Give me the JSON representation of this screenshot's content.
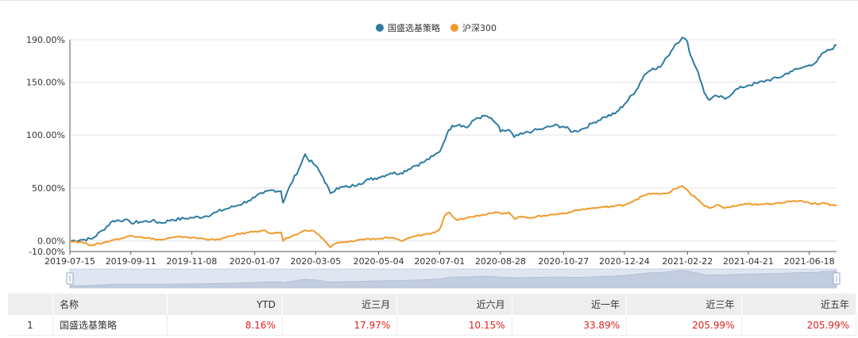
{
  "chart_data": {
    "type": "line",
    "title": "",
    "legend_position": "top-center",
    "grid": true,
    "ylim": [
      -10,
      190
    ],
    "y_ticks": [
      "190.00%",
      "150.00%",
      "100.00%",
      "50.00%",
      "0.00%",
      "-10.00%"
    ],
    "y_tick_values": [
      190,
      150,
      100,
      50,
      0,
      -10
    ],
    "x_ticks": [
      "2019-07-15",
      "2019-09-11",
      "2019-11-08",
      "2020-01-07",
      "2020-03-05",
      "2020-05-04",
      "2020-07-01",
      "2020-08-28",
      "2020-10-27",
      "2020-12-24",
      "2021-02-22",
      "2021-04-21",
      "2021-06-18"
    ],
    "x_start": "2019-07-15",
    "x_end": "2021-07-14",
    "series": [
      {
        "name": "国盛选基策略",
        "color": "#2e7ba1",
        "points": [
          [
            "2019-07-15",
            0
          ],
          [
            "2019-07-25",
            1
          ],
          [
            "2019-08-05",
            2
          ],
          [
            "2019-08-15",
            10
          ],
          [
            "2019-08-25",
            19
          ],
          [
            "2019-09-05",
            20
          ],
          [
            "2019-09-11",
            17
          ],
          [
            "2019-09-20",
            18
          ],
          [
            "2019-10-01",
            19
          ],
          [
            "2019-10-10",
            17
          ],
          [
            "2019-10-20",
            20
          ],
          [
            "2019-11-01",
            21
          ],
          [
            "2019-11-08",
            22
          ],
          [
            "2019-11-20",
            23
          ],
          [
            "2019-12-01",
            27
          ],
          [
            "2019-12-10",
            30
          ],
          [
            "2019-12-20",
            33
          ],
          [
            "2020-01-01",
            38
          ],
          [
            "2020-01-07",
            41
          ],
          [
            "2020-01-15",
            45
          ],
          [
            "2020-01-23",
            48
          ],
          [
            "2020-02-01",
            47
          ],
          [
            "2020-02-03",
            36
          ],
          [
            "2020-02-10",
            53
          ],
          [
            "2020-02-18",
            68
          ],
          [
            "2020-02-24",
            82
          ],
          [
            "2020-02-26",
            78
          ],
          [
            "2020-03-05",
            71
          ],
          [
            "2020-03-12",
            60
          ],
          [
            "2020-03-19",
            45
          ],
          [
            "2020-03-25",
            50
          ],
          [
            "2020-04-05",
            51
          ],
          [
            "2020-04-15",
            54
          ],
          [
            "2020-04-25",
            58
          ],
          [
            "2020-05-04",
            60
          ],
          [
            "2020-05-15",
            64
          ],
          [
            "2020-05-25",
            64
          ],
          [
            "2020-06-05",
            70
          ],
          [
            "2020-06-15",
            74
          ],
          [
            "2020-06-25",
            80
          ],
          [
            "2020-07-01",
            84
          ],
          [
            "2020-07-08",
            101
          ],
          [
            "2020-07-13",
            109
          ],
          [
            "2020-07-20",
            110
          ],
          [
            "2020-07-27",
            107
          ],
          [
            "2020-08-05",
            116
          ],
          [
            "2020-08-15",
            118
          ],
          [
            "2020-08-25",
            110
          ],
          [
            "2020-08-28",
            103
          ],
          [
            "2020-09-05",
            105
          ],
          [
            "2020-09-10",
            98
          ],
          [
            "2020-09-18",
            101
          ],
          [
            "2020-09-28",
            104
          ],
          [
            "2020-10-08",
            106
          ],
          [
            "2020-10-18",
            109
          ],
          [
            "2020-10-27",
            108
          ],
          [
            "2020-11-05",
            103
          ],
          [
            "2020-11-15",
            106
          ],
          [
            "2020-11-25",
            112
          ],
          [
            "2020-12-05",
            117
          ],
          [
            "2020-12-15",
            120
          ],
          [
            "2020-12-24",
            129
          ],
          [
            "2021-01-04",
            142
          ],
          [
            "2021-01-12",
            157
          ],
          [
            "2021-01-20",
            163
          ],
          [
            "2021-01-27",
            164
          ],
          [
            "2021-02-03",
            174
          ],
          [
            "2021-02-10",
            185
          ],
          [
            "2021-02-17",
            192
          ],
          [
            "2021-02-22",
            188
          ],
          [
            "2021-02-25",
            175
          ],
          [
            "2021-03-04",
            160
          ],
          [
            "2021-03-10",
            140
          ],
          [
            "2021-03-15",
            133
          ],
          [
            "2021-03-22",
            137
          ],
          [
            "2021-03-30",
            134
          ],
          [
            "2021-04-08",
            142
          ],
          [
            "2021-04-15",
            145
          ],
          [
            "2021-04-21",
            147
          ],
          [
            "2021-04-30",
            149
          ],
          [
            "2021-05-10",
            152
          ],
          [
            "2021-05-20",
            154
          ],
          [
            "2021-05-31",
            160
          ],
          [
            "2021-06-10",
            163
          ],
          [
            "2021-06-18",
            166
          ],
          [
            "2021-06-25",
            169
          ],
          [
            "2021-07-02",
            178
          ],
          [
            "2021-07-09",
            181
          ],
          [
            "2021-07-14",
            185
          ]
        ]
      },
      {
        "name": "沪深300",
        "color": "#f19a2a",
        "points": [
          [
            "2019-07-15",
            0
          ],
          [
            "2019-07-25",
            -1
          ],
          [
            "2019-08-05",
            -4
          ],
          [
            "2019-08-15",
            -2
          ],
          [
            "2019-08-25",
            1
          ],
          [
            "2019-09-05",
            3
          ],
          [
            "2019-09-11",
            5
          ],
          [
            "2019-09-20",
            4
          ],
          [
            "2019-10-01",
            2
          ],
          [
            "2019-10-10",
            1
          ],
          [
            "2019-10-20",
            3
          ],
          [
            "2019-11-01",
            4
          ],
          [
            "2019-11-08",
            3
          ],
          [
            "2019-11-20",
            2
          ],
          [
            "2019-12-01",
            1
          ],
          [
            "2019-12-10",
            3
          ],
          [
            "2019-12-20",
            6
          ],
          [
            "2020-01-01",
            8
          ],
          [
            "2020-01-07",
            9
          ],
          [
            "2020-01-15",
            10
          ],
          [
            "2020-01-23",
            7
          ],
          [
            "2020-02-01",
            8
          ],
          [
            "2020-02-03",
            0
          ],
          [
            "2020-02-10",
            4
          ],
          [
            "2020-02-18",
            7
          ],
          [
            "2020-02-24",
            10
          ],
          [
            "2020-03-01",
            10
          ],
          [
            "2020-03-05",
            8
          ],
          [
            "2020-03-12",
            2
          ],
          [
            "2020-03-19",
            -6
          ],
          [
            "2020-03-25",
            -2
          ],
          [
            "2020-04-05",
            -1
          ],
          [
            "2020-04-15",
            1
          ],
          [
            "2020-04-25",
            2
          ],
          [
            "2020-05-04",
            2
          ],
          [
            "2020-05-15",
            3
          ],
          [
            "2020-05-25",
            0
          ],
          [
            "2020-06-05",
            4
          ],
          [
            "2020-06-15",
            6
          ],
          [
            "2020-06-25",
            8
          ],
          [
            "2020-07-01",
            11
          ],
          [
            "2020-07-06",
            24
          ],
          [
            "2020-07-10",
            27
          ],
          [
            "2020-07-17",
            20
          ],
          [
            "2020-07-27",
            22
          ],
          [
            "2020-08-05",
            24
          ],
          [
            "2020-08-15",
            25
          ],
          [
            "2020-08-25",
            27
          ],
          [
            "2020-08-28",
            26
          ],
          [
            "2020-09-05",
            27
          ],
          [
            "2020-09-10",
            21
          ],
          [
            "2020-09-18",
            23
          ],
          [
            "2020-09-28",
            22
          ],
          [
            "2020-10-08",
            24
          ],
          [
            "2020-10-18",
            25
          ],
          [
            "2020-10-27",
            26
          ],
          [
            "2020-11-05",
            28
          ],
          [
            "2020-11-15",
            30
          ],
          [
            "2020-11-25",
            31
          ],
          [
            "2020-12-05",
            32
          ],
          [
            "2020-12-15",
            33
          ],
          [
            "2020-12-24",
            34
          ],
          [
            "2021-01-04",
            39
          ],
          [
            "2021-01-12",
            43
          ],
          [
            "2021-01-20",
            45
          ],
          [
            "2021-01-27",
            44
          ],
          [
            "2021-02-03",
            45
          ],
          [
            "2021-02-10",
            49
          ],
          [
            "2021-02-17",
            52
          ],
          [
            "2021-02-22",
            48
          ],
          [
            "2021-02-25",
            44
          ],
          [
            "2021-03-04",
            39
          ],
          [
            "2021-03-10",
            33
          ],
          [
            "2021-03-15",
            31
          ],
          [
            "2021-03-22",
            34
          ],
          [
            "2021-03-30",
            31
          ],
          [
            "2021-04-08",
            33
          ],
          [
            "2021-04-15",
            34
          ],
          [
            "2021-04-21",
            35
          ],
          [
            "2021-04-30",
            34
          ],
          [
            "2021-05-10",
            35
          ],
          [
            "2021-05-20",
            36
          ],
          [
            "2021-05-31",
            37
          ],
          [
            "2021-06-10",
            38
          ],
          [
            "2021-06-18",
            36
          ],
          [
            "2021-06-25",
            35
          ],
          [
            "2021-07-02",
            36
          ],
          [
            "2021-07-09",
            34
          ],
          [
            "2021-07-14",
            34
          ]
        ]
      }
    ]
  },
  "table": {
    "headers": [
      "名称",
      "YTD",
      "近三月",
      "近六月",
      "近一年",
      "近三年",
      "近五年"
    ],
    "rows": [
      {
        "index": "1",
        "name": "国盛选基策略",
        "values": [
          "8.16%",
          "17.97%",
          "10.15%",
          "33.89%",
          "205.99%",
          "205.99%"
        ]
      }
    ]
  }
}
